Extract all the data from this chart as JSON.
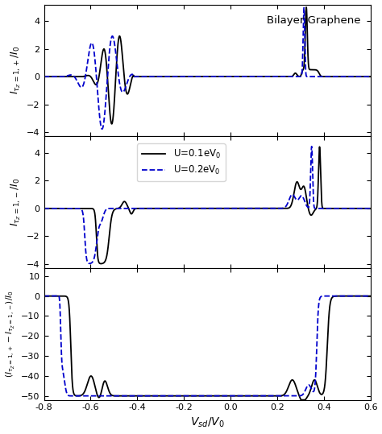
{
  "title": "Bilayer Graphene",
  "xlabel": "$V_{sd}/V_0$",
  "ylabel1": "$I_{\\tau_Z=1,+}/I_0$",
  "ylabel2": "$I_{\\tau_Z=1,-}/I_0$",
  "ylabel3": "$(I_{\\tau_Z=1,+}-I_{\\tau_Z=1,-})/I_0$",
  "xlim": [
    -0.8,
    0.6
  ],
  "ylim1": [
    -4.3,
    5.2
  ],
  "ylim2": [
    -4.3,
    5.2
  ],
  "ylim3": [
    -52,
    14
  ],
  "yticks1": [
    -4,
    -2,
    0,
    2,
    4
  ],
  "yticks2": [
    -4,
    -2,
    0,
    2,
    4
  ],
  "yticks3": [
    -50,
    -40,
    -30,
    -20,
    -10,
    0,
    10
  ],
  "xticks": [
    -0.8,
    -0.6,
    -0.4,
    -0.2,
    0.0,
    0.2,
    0.4,
    0.6
  ],
  "xticklabels": [
    "-0.8",
    "-0.6",
    "-0.4",
    "-0.2",
    "0.0",
    "0.2",
    "0.4",
    "0.6"
  ],
  "legend_black": "U=0.1eV$_0$",
  "legend_blue": "U=0.2eV$_0$",
  "black_color": "#000000",
  "blue_color": "#0000cc",
  "figsize": [
    4.74,
    5.39
  ],
  "dpi": 100
}
